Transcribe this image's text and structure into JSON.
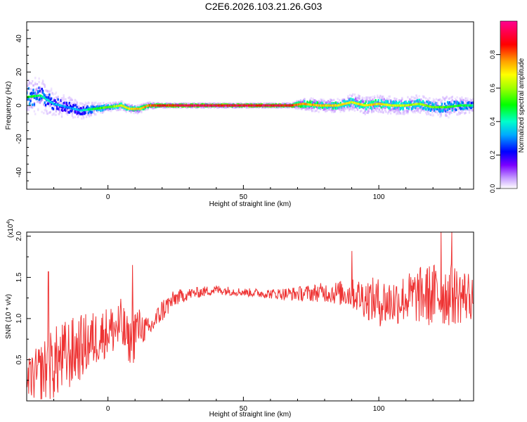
{
  "title": "C2E6.2026.103.21.26.G03",
  "chart_data": [
    {
      "type": "heatmap",
      "xlabel": "Height of straight line (km)",
      "ylabel": "Frequency (Hz)",
      "xlim": [
        -30,
        135
      ],
      "ylim": [
        -50,
        50
      ],
      "xticks": [
        0,
        50,
        100
      ],
      "yticks": [
        -40,
        -20,
        0,
        20,
        40
      ],
      "colorbar": {
        "label": "Normalized spectral amplitude",
        "range": [
          0,
          1
        ],
        "ticks": [
          "0.0",
          "0.2",
          "0.4",
          "0.6",
          "0.8"
        ],
        "colormap": [
          "#ffffff",
          "#c8a0ff",
          "#7a00ff",
          "#0000ff",
          "#00aaff",
          "#00ffcc",
          "#00ff00",
          "#a0ff00",
          "#ffff00",
          "#ffa000",
          "#ff0000",
          "#ff0090"
        ]
      },
      "ridge": {
        "x": [
          -30,
          -25,
          -20,
          -15,
          -10,
          -5,
          0,
          5,
          8,
          12,
          15,
          20,
          30,
          40,
          50,
          60,
          68,
          72,
          78,
          85,
          90,
          95,
          100,
          105,
          110,
          115,
          120,
          125,
          130,
          135
        ],
        "freq": [
          5,
          6,
          1,
          -1,
          -3,
          -2,
          -1,
          0,
          -2,
          -2,
          0,
          0,
          0,
          0,
          0,
          0,
          0,
          1,
          0,
          0,
          2,
          0,
          1,
          0,
          0,
          1,
          -1,
          -1,
          0,
          0
        ],
        "spread": [
          9,
          8,
          6,
          5,
          4,
          3,
          2,
          2,
          2,
          2,
          1.5,
          1,
          1,
          1,
          1,
          1,
          1,
          3,
          3,
          3,
          4,
          4,
          4,
          4,
          4,
          4,
          4,
          5,
          4,
          3
        ],
        "amplitude": [
          0.55,
          0.5,
          0.4,
          0.35,
          0.4,
          0.55,
          0.6,
          0.7,
          0.75,
          0.8,
          0.85,
          0.9,
          0.95,
          0.95,
          0.95,
          0.95,
          0.9,
          0.8,
          0.8,
          0.75,
          0.7,
          0.75,
          0.75,
          0.7,
          0.65,
          0.65,
          0.6,
          0.55,
          0.55,
          0.5
        ]
      }
    },
    {
      "type": "line",
      "xlabel": "Height of straight line (km)",
      "ylabel": "SNR (10 * v/v)",
      "scale_label": "(x10",
      "scale_exp": "4",
      "scale_close": ")",
      "xlim": [
        -30,
        135
      ],
      "ylim": [
        0,
        20500
      ],
      "xticks": [
        0,
        50,
        100
      ],
      "yticks": [
        {
          "value": 5000,
          "label": "0.5"
        },
        {
          "value": 10000,
          "label": "1.0"
        },
        {
          "value": 15000,
          "label": "1.5"
        },
        {
          "value": 20000,
          "label": "2.0"
        }
      ],
      "color": "#ee3333",
      "envelope": {
        "x": [
          -30,
          -25,
          -20,
          -15,
          -10,
          -5,
          0,
          5,
          8,
          10,
          12,
          15,
          17,
          20,
          25,
          30,
          40,
          50,
          60,
          70,
          80,
          90,
          95,
          100,
          105,
          110,
          115,
          120,
          125,
          130,
          135
        ],
        "center": [
          2500,
          3500,
          4500,
          5500,
          6500,
          7500,
          8500,
          9000,
          7000,
          8500,
          9000,
          8500,
          9500,
          11000,
          12500,
          13000,
          13500,
          13200,
          13000,
          13000,
          13200,
          13000,
          12500,
          12000,
          12000,
          12500,
          12800,
          12800,
          13000,
          12800,
          12800
        ],
        "spread": [
          2500,
          3500,
          4500,
          4500,
          4000,
          3500,
          3000,
          3500,
          2500,
          4000,
          2000,
          1500,
          1200,
          1500,
          1000,
          700,
          600,
          500,
          600,
          900,
          1200,
          1800,
          2500,
          3000,
          3000,
          3000,
          3500,
          4000,
          4000,
          3500,
          3000
        ]
      },
      "peaks": [
        {
          "x": 9,
          "y": 16500
        },
        {
          "x": 123,
          "y": 20500
        },
        {
          "x": 127,
          "y": 20500
        },
        {
          "x": 90,
          "y": 18200
        },
        {
          "x": -22,
          "y": 15700
        }
      ]
    }
  ]
}
